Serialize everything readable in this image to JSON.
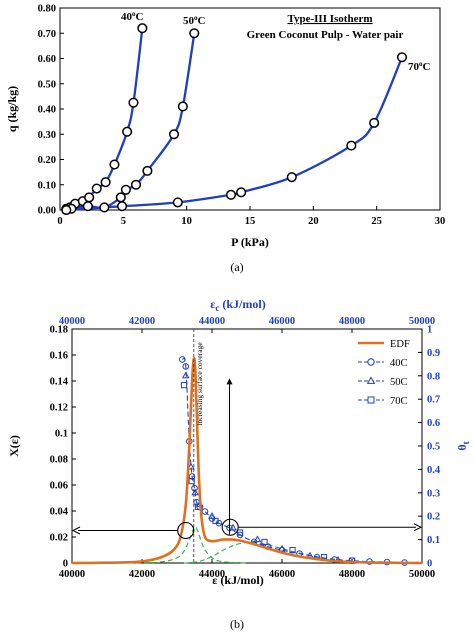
{
  "chart_data": [
    {
      "type": "line",
      "caption": "(a)",
      "title": "Type-III Isotherm",
      "subtitle": "Green Coconut Pulp - Water pair",
      "xlabel": "P (kPa)",
      "ylabel": "q (kg/kg)",
      "xlim": [
        0,
        30
      ],
      "ylim": [
        0,
        0.8
      ],
      "xticks": [
        "0",
        "5",
        "10",
        "15",
        "20",
        "25",
        "30"
      ],
      "yticks": [
        "0.00",
        "0.10",
        "0.20",
        "0.30",
        "0.40",
        "0.50",
        "0.60",
        "0.70",
        "0.80"
      ],
      "grid": false,
      "series": [
        {
          "name": "40°C",
          "label_text": "40",
          "label_unit": "C",
          "color": "#1f3fbf",
          "points": [
            [
              0.5,
              0.005
            ],
            [
              0.8,
              0.01
            ],
            [
              1.2,
              0.025
            ],
            [
              1.8,
              0.035
            ],
            [
              2.3,
              0.05
            ],
            [
              2.9,
              0.085
            ],
            [
              3.6,
              0.11
            ],
            [
              4.3,
              0.18
            ],
            [
              5.3,
              0.31
            ],
            [
              5.8,
              0.425
            ],
            [
              6.5,
              0.72
            ]
          ]
        },
        {
          "name": "50°C",
          "label_text": "50",
          "label_unit": "C",
          "color": "#1f3fbf",
          "points": [
            [
              0.5,
              0.0
            ],
            [
              0.9,
              0.005
            ],
            [
              2.2,
              0.015
            ],
            [
              3.5,
              0.01
            ],
            [
              4.8,
              0.05
            ],
            [
              5.2,
              0.08
            ],
            [
              6.0,
              0.1
            ],
            [
              6.9,
              0.155
            ],
            [
              9.0,
              0.3
            ],
            [
              9.7,
              0.41
            ],
            [
              10.6,
              0.7
            ]
          ]
        },
        {
          "name": "70°C",
          "label_text": "70",
          "label_unit": "C",
          "color": "#1f3fbf",
          "points": [
            [
              0.5,
              0.0
            ],
            [
              4.9,
              0.015
            ],
            [
              9.3,
              0.03
            ],
            [
              13.5,
              0.06
            ],
            [
              14.3,
              0.07
            ],
            [
              18.3,
              0.13
            ],
            [
              23.0,
              0.255
            ],
            [
              24.8,
              0.345
            ],
            [
              27.0,
              0.605
            ]
          ]
        }
      ]
    },
    {
      "type": "line",
      "caption": "(b)",
      "xlabel": "ε (kJ/mol)",
      "x2label": "εc (kJ/mol)",
      "x2label_main": "ε",
      "x2label_sub": "c",
      "x2label_rest": " (kJ/mol)",
      "ylabel": "X(ε)",
      "y2label": "θt",
      "y2label_main": "θ",
      "y2label_sub": "t",
      "xlim": [
        40000,
        50000
      ],
      "ylim": [
        0,
        0.18
      ],
      "y2lim": [
        0,
        1
      ],
      "xticks": [
        "40000",
        "42000",
        "44000",
        "46000",
        "48000",
        "50000"
      ],
      "yticks": [
        "0",
        "0.02",
        "0.04",
        "0.06",
        "0.08",
        "0.1",
        "0.12",
        "0.14",
        "0.16",
        "0.18"
      ],
      "y2ticks": [
        "0",
        "0.1",
        "0.2",
        "0.3",
        "0.4",
        "0.5",
        "0.6",
        "0.7",
        "0.8",
        "0.9",
        "1"
      ],
      "annotation": "increasing surface coverage",
      "legend_position": "top-right",
      "grid": false,
      "edf": {
        "name": "EDF",
        "color": "#e07020",
        "x": [
          40000,
          41000,
          41800,
          42200,
          42600,
          42900,
          43100,
          43250,
          43350,
          43430,
          43480,
          43520,
          43560,
          43620,
          43700,
          43800,
          43950,
          44100,
          44300,
          44600,
          45000,
          45500,
          46000,
          46500,
          47000,
          47500,
          48000,
          48500,
          49000,
          50000
        ],
        "y": [
          0.0,
          0.0002,
          0.0008,
          0.002,
          0.005,
          0.01,
          0.02,
          0.045,
          0.09,
          0.14,
          0.157,
          0.15,
          0.12,
          0.07,
          0.035,
          0.02,
          0.017,
          0.017,
          0.018,
          0.018,
          0.016,
          0.012,
          0.008,
          0.005,
          0.003,
          0.0015,
          0.0008,
          0.0004,
          0.0002,
          0.0
        ]
      },
      "green_dashed": [
        {
          "x": [
            40000,
            42000,
            42600,
            43000,
            43200,
            43350,
            43450,
            43520,
            43600,
            43700,
            43800,
            44000,
            44300,
            45000
          ],
          "y": [
            0.0,
            0.0002,
            0.001,
            0.004,
            0.009,
            0.018,
            0.025,
            0.028,
            0.024,
            0.016,
            0.01,
            0.004,
            0.001,
            0.0
          ]
        },
        {
          "x": [
            43200,
            43600,
            44000,
            44400,
            44800,
            45200,
            45600,
            46000,
            46600,
            47200,
            48000,
            49000,
            50000
          ],
          "y": [
            0.0,
            0.001,
            0.005,
            0.011,
            0.015,
            0.016,
            0.014,
            0.011,
            0.007,
            0.004,
            0.0015,
            0.0004,
            0.0
          ]
        }
      ],
      "markers": [
        {
          "name": "40C",
          "symbol": "circle",
          "x": [
            43150,
            43250,
            43350,
            43430,
            43500,
            43560,
            43650,
            43800,
            44000,
            44200,
            44500,
            44800,
            45200,
            45600,
            46000,
            46500,
            47000,
            47500,
            48000,
            48500,
            49000,
            49500
          ],
          "y": [
            0.87,
            0.84,
            0.52,
            0.37,
            0.32,
            0.26,
            0.24,
            0.22,
            0.19,
            0.17,
            0.15,
            0.12,
            0.09,
            0.07,
            0.055,
            0.04,
            0.025,
            0.015,
            0.01,
            0.006,
            0.004,
            0.002
          ]
        },
        {
          "name": "50C",
          "symbol": "triangle",
          "x": [
            43250,
            43400,
            43520,
            43650,
            44000,
            44600,
            45300,
            46000,
            46800,
            47600
          ],
          "y": [
            0.8,
            0.41,
            0.3,
            0.25,
            0.2,
            0.15,
            0.1,
            0.06,
            0.03,
            0.012
          ]
        },
        {
          "name": "70C",
          "symbol": "square",
          "x": [
            43200,
            43420,
            43600,
            44100,
            44800,
            45500,
            46300,
            47200,
            48000
          ],
          "y": [
            0.76,
            0.35,
            0.24,
            0.18,
            0.13,
            0.09,
            0.055,
            0.025,
            0.01
          ]
        }
      ]
    }
  ]
}
